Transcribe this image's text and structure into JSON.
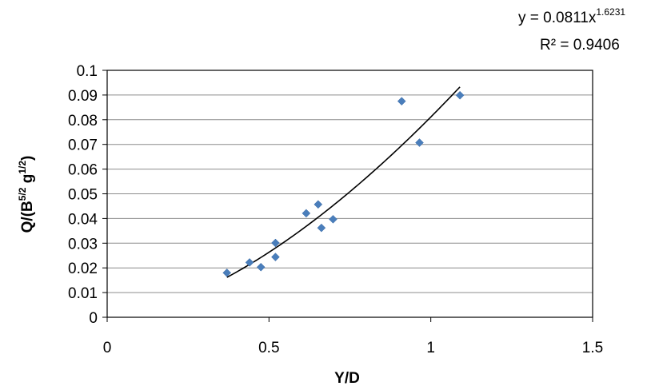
{
  "chart_data": {
    "type": "scatter",
    "xlabel": "Y/D",
    "ylabel_parts": {
      "base": "Q/(B",
      "sup1": "5/2",
      "mid": " g",
      "sup2": "1/2",
      "end": ")"
    },
    "xlim": [
      0,
      1.5
    ],
    "ylim": [
      0,
      0.1
    ],
    "x_ticks": [
      0,
      0.5,
      1,
      1.5
    ],
    "x_tick_labels": [
      "0",
      "0.5",
      "1",
      "1.5"
    ],
    "y_ticks": [
      0,
      0.01,
      0.02,
      0.03,
      0.04,
      0.05,
      0.06,
      0.07,
      0.08,
      0.09,
      0.1
    ],
    "y_tick_labels": [
      "0",
      "0.01",
      "0.02",
      "0.03",
      "0.04",
      "0.05",
      "0.06",
      "0.07",
      "0.08",
      "0.09",
      "0.1"
    ],
    "grid": "horizontal",
    "points": [
      {
        "x": 0.37,
        "y": 0.018
      },
      {
        "x": 0.44,
        "y": 0.0222
      },
      {
        "x": 0.475,
        "y": 0.0203
      },
      {
        "x": 0.52,
        "y": 0.0301
      },
      {
        "x": 0.52,
        "y": 0.0244
      },
      {
        "x": 0.615,
        "y": 0.0421
      },
      {
        "x": 0.652,
        "y": 0.0457
      },
      {
        "x": 0.662,
        "y": 0.0362
      },
      {
        "x": 0.698,
        "y": 0.0397
      },
      {
        "x": 0.91,
        "y": 0.0875
      },
      {
        "x": 0.965,
        "y": 0.0707
      },
      {
        "x": 1.09,
        "y": 0.0899
      }
    ],
    "trendline": {
      "type": "power",
      "coefficient": 0.0811,
      "exponent": 1.6231,
      "x_range": [
        0.37,
        1.09
      ]
    },
    "equation": {
      "prefix": "y = 0.0811x",
      "exponent": "1.6231",
      "r_squared": "R² = 0.9406"
    },
    "colors": {
      "marker": "#4a7ebb",
      "trendline": "#000000",
      "grid": "#8c8c8c",
      "axis": "#000000"
    }
  }
}
